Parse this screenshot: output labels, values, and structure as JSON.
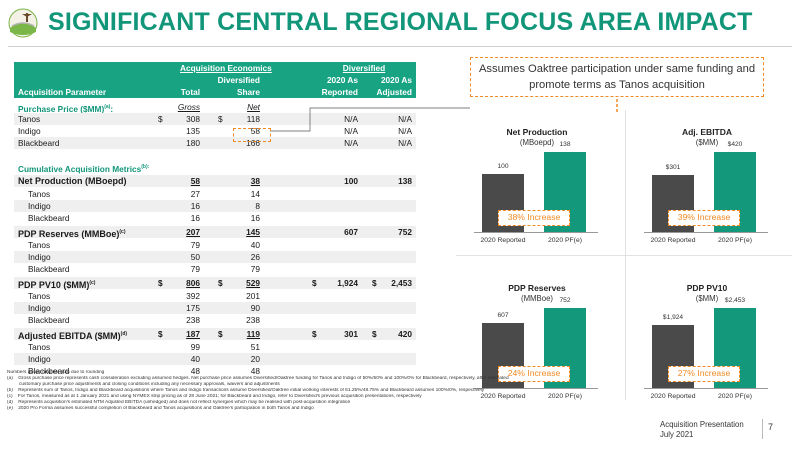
{
  "title": "SIGNIFICANT CENTRAL REGIONAL FOCUS AREA IMPACT",
  "table": {
    "group_acq": "Acquisition Economics",
    "group_div": "Diversified",
    "h_param": "Acquisition Parameter",
    "h_total": "Total",
    "h_divshare_1": "Diversified",
    "h_divshare_2": "Share",
    "h_asrep_1": "2020 As",
    "h_asrep_2": "Reported",
    "h_asadj_1": "2020 As",
    "h_asadj_2": "Adjusted",
    "purchase_title": "Purchase Price ($MM)",
    "purchase_sup": "(a)",
    "gross": "Gross",
    "net": "Net",
    "purchase_rows": [
      {
        "name": "Tanos",
        "d1": "$",
        "total": "308",
        "d2": "$",
        "share": "118",
        "rep": "N/A",
        "adj": "N/A"
      },
      {
        "name": "Indigo",
        "d1": "",
        "total": "135",
        "d2": "",
        "share": "58",
        "rep": "N/A",
        "adj": "N/A"
      },
      {
        "name": "Blackbeard",
        "d1": "",
        "total": "180",
        "d2": "",
        "share": "166",
        "rep": "N/A",
        "adj": "N/A"
      }
    ],
    "cum_title": "Cumulative Acquisition Metrics",
    "cum_sup": "(b):",
    "sections": [
      {
        "label": "Net Production (MBoepd)",
        "sup": "",
        "d1": "",
        "total": "58",
        "d2": "",
        "share": "38",
        "d3": "",
        "rep": "100",
        "d4": "",
        "adj": "138",
        "rows": [
          {
            "name": "Tanos",
            "total": "27",
            "share": "14"
          },
          {
            "name": "Indigo",
            "total": "16",
            "share": "8"
          },
          {
            "name": "Blackbeard",
            "total": "16",
            "share": "16"
          }
        ]
      },
      {
        "label": "PDP Reserves (MMBoe)",
        "sup": "(c)",
        "d1": "",
        "total": "207",
        "d2": "",
        "share": "145",
        "d3": "",
        "rep": "607",
        "d4": "",
        "adj": "752",
        "rows": [
          {
            "name": "Tanos",
            "total": "79",
            "share": "40"
          },
          {
            "name": "Indigo",
            "total": "50",
            "share": "26"
          },
          {
            "name": "Blackbeard",
            "total": "79",
            "share": "79"
          }
        ]
      },
      {
        "label": "PDP PV10 ($MM)",
        "sup": "(c)",
        "d1": "$",
        "total": "806",
        "d2": "$",
        "share": "529",
        "d3": "$",
        "rep": "1,924",
        "d4": "$",
        "adj": "2,453",
        "rows": [
          {
            "name": "Tanos",
            "total": "392",
            "share": "201"
          },
          {
            "name": "Indigo",
            "total": "175",
            "share": "90"
          },
          {
            "name": "Blackbeard",
            "total": "238",
            "share": "238"
          }
        ]
      },
      {
        "label": "Adjusted EBITDA ($MM)",
        "sup": "(d)",
        "d1": "$",
        "total": "187",
        "d2": "$",
        "share": "119",
        "d3": "$",
        "rep": "301",
        "d4": "$",
        "adj": "420",
        "rows": [
          {
            "name": "Tanos",
            "total": "99",
            "share": "51"
          },
          {
            "name": "Indigo",
            "total": "40",
            "share": "20"
          },
          {
            "name": "Blackbeard",
            "total": "48",
            "share": "48"
          }
        ]
      }
    ]
  },
  "footnotes": [
    "Numbers above may not sum due to rounding",
    "(a)    Gross purchase price represents cash consideration excluding assumed hedges. Net purchase price assumes Diversified/Oaktree funding for Tanos and Indigo of 50%/50% and 100%/0% for Blackbeard, respectively, after estimated",
    "         customary purchase price adjustments and closing conditions including any necessary approvals, waivers and adjustments",
    "(b)    Represents sum of Tanos, Indigo and Blackbeard acquisitions where Tanos and Indigo transactions assume Diversified/Oaktree initial working interests of 51.25%/48.75% and Blackbeard assumes 100%/0%, respectively",
    "(c)    For Tanos, measured as at 1 January 2021 and using NYMEX strip pricing as of 28 June 2021; for Blackbeard and Indigo, refer to Diversified's previous acquisition presentations, respectively",
    "(d)    Represents acquisition's estimated NTM Adjusted EBITDA (unhedged) and does not reflect synergies which may be realised with post-acquisition integration",
    "(e)    2020 Pro Forma assumes successful completion of Blackbeard and Tanos acquisitions and Oaktree's participation in both Tanos and Indigo"
  ],
  "callout": "Assumes Oaktree participation under same funding and promote terms as Tanos acquisition",
  "charts_colors": {
    "reported": "#4a4a4a",
    "pf": "#14987b",
    "callout": "#f08a24"
  },
  "chart_data": [
    {
      "type": "bar",
      "title": "Net Production",
      "subtitle": "(MBoepd)",
      "categories": [
        "2020 Reported",
        "2020 PF(e)"
      ],
      "values": [
        100,
        138
      ],
      "labels": [
        "100",
        "138"
      ],
      "annotation": "38% Increase"
    },
    {
      "type": "bar",
      "title": "Adj. EBITDA",
      "subtitle": "($MM)",
      "categories": [
        "2020 Reported",
        "2020 PF(e)"
      ],
      "values": [
        301,
        420
      ],
      "labels": [
        "$301",
        "$420"
      ],
      "annotation": "39% Increase"
    },
    {
      "type": "bar",
      "title": "PDP Reserves",
      "subtitle": "(MMBoe)",
      "categories": [
        "2020 Reported",
        "2020 PF(e)"
      ],
      "values": [
        607,
        752
      ],
      "labels": [
        "607",
        "752"
      ],
      "annotation": "24% Increase"
    },
    {
      "type": "bar",
      "title": "PDP PV10",
      "subtitle": "($MM)",
      "categories": [
        "2020 Reported",
        "2020 PF(e)"
      ],
      "values": [
        1924,
        2453
      ],
      "labels": [
        "$1,924",
        "$2,453"
      ],
      "annotation": "27% Increase"
    }
  ],
  "footer": {
    "line1": "Acquisition Presentation",
    "line2": "July 2021",
    "page": "7"
  }
}
